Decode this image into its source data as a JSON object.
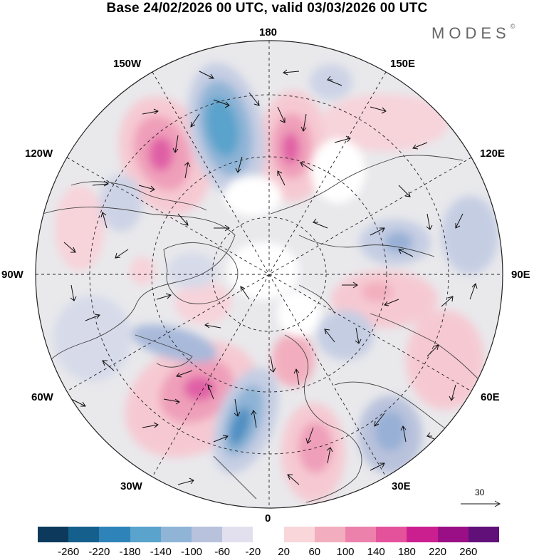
{
  "title": "Base 24/02/2026 00 UTC, valid 03/03/2026 00 UTC",
  "brand": {
    "name": "MODES",
    "mark": "©"
  },
  "map": {
    "projection": "north-polar-stereographic",
    "longitude_labels": {
      "top": "180",
      "top_left": "150W",
      "top_right": "150E",
      "upper_left": "120W",
      "upper_right": "120E",
      "left": "90W",
      "right": "90E",
      "lower_left": "60W",
      "lower_right": "60E",
      "bottom_left": "30W",
      "bottom_right": "30E",
      "bottom": "0"
    },
    "reference_vector": {
      "value": "30",
      "icon": "arrow-right-icon"
    }
  },
  "colorbar": {
    "colors": [
      "#0d3a5c",
      "#155f8c",
      "#2e84b8",
      "#5aa3cc",
      "#8fb4d6",
      "#b9c2dc",
      "#e2e0ee",
      "#ffffff",
      "#f9d6da",
      "#f2aebe",
      "#ec82ac",
      "#e4529c",
      "#cc1f8f",
      "#9b0f86",
      "#61107a"
    ],
    "labels": [
      "-260",
      "-220",
      "-180",
      "-140",
      "-100",
      "-60",
      "-20",
      "20",
      "60",
      "100",
      "140",
      "180",
      "220",
      "260"
    ]
  }
}
